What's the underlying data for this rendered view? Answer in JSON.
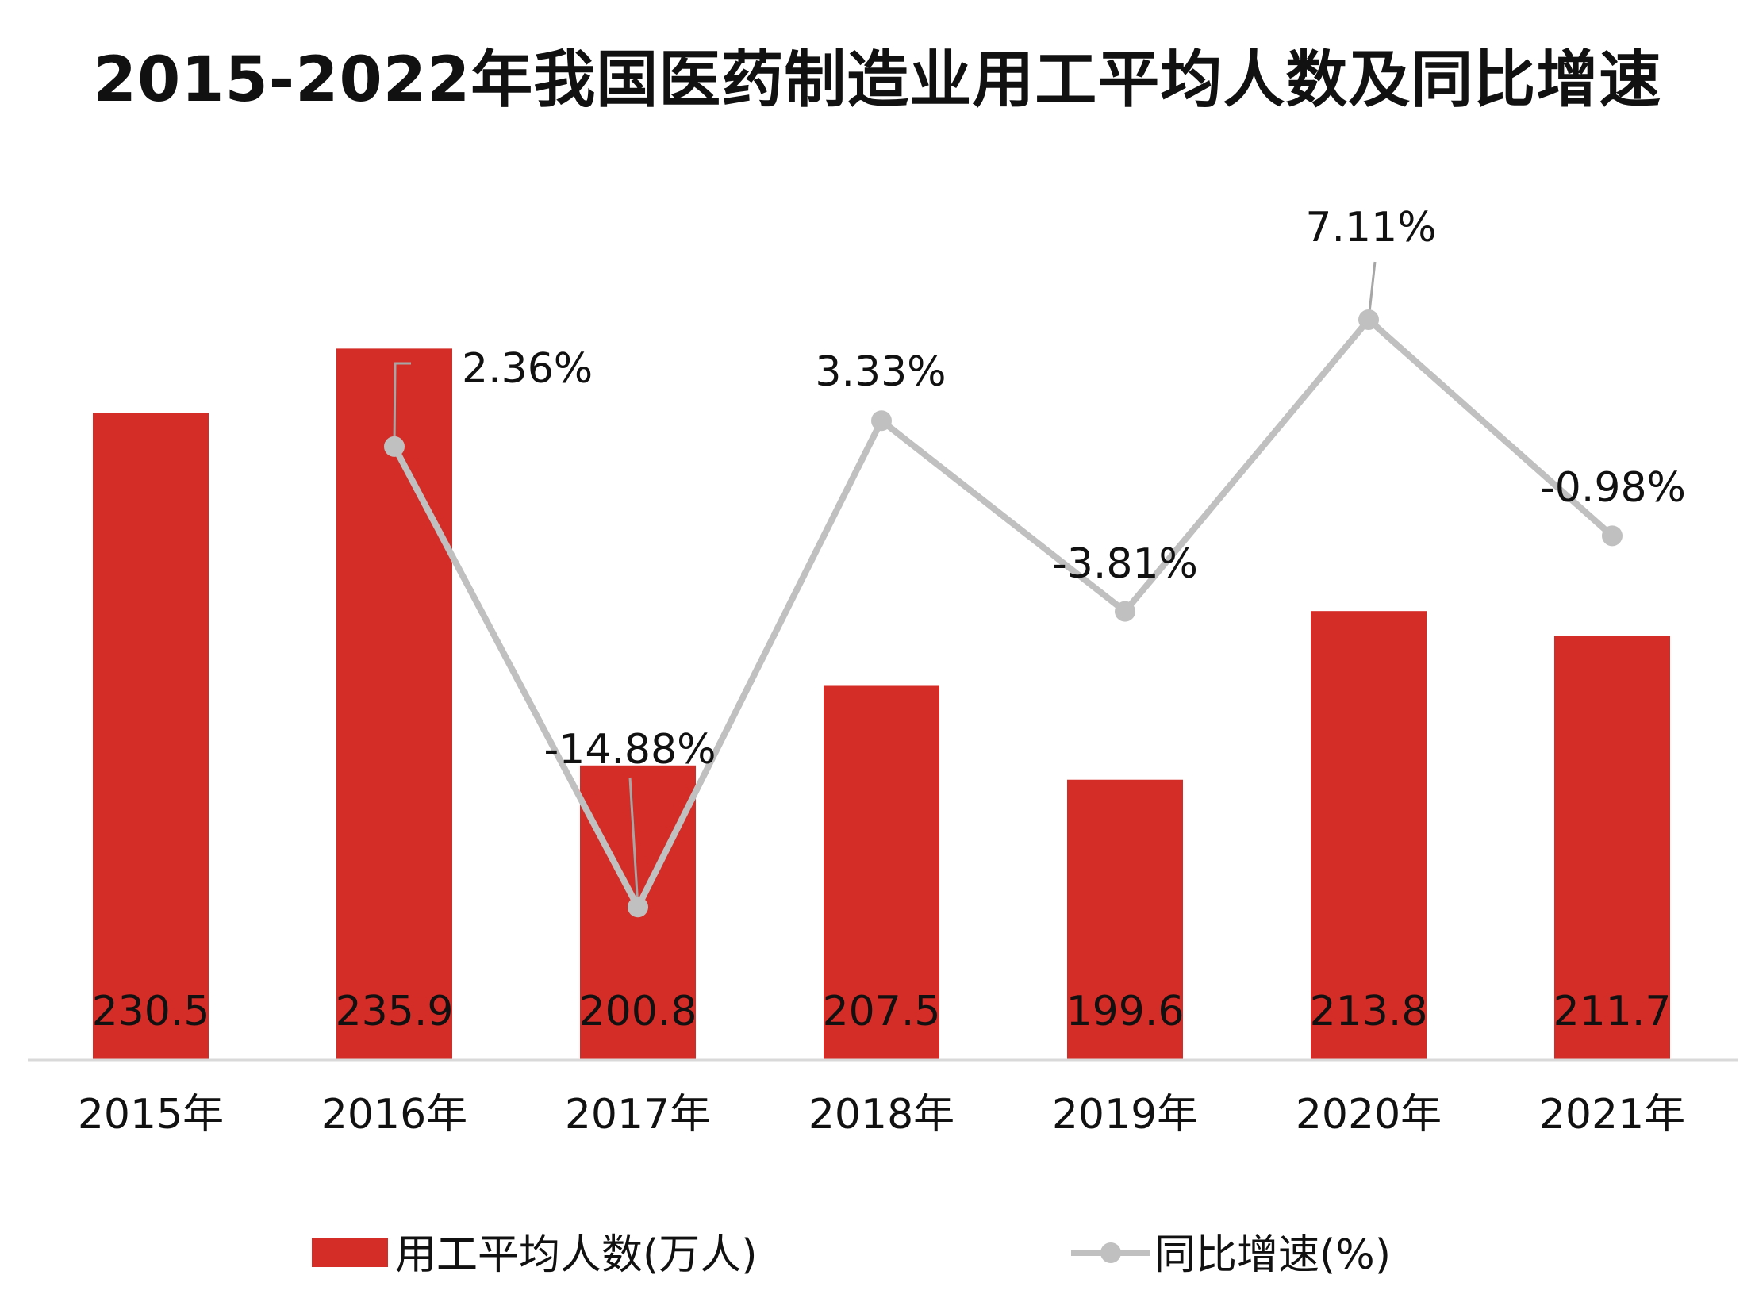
{
  "title": "2015-2022年我国医药制造业用工平均人数及同比增速",
  "colors": {
    "bar": "#d42d27",
    "line": "#c0c0c0",
    "text": "#111111"
  },
  "chart_data": {
    "type": "bar",
    "title": "2015-2022年我国医药制造业用工平均人数及同比增速",
    "categories": [
      "2015年",
      "2016年",
      "2017年",
      "2018年",
      "2019年",
      "2020年",
      "2021年"
    ],
    "series": [
      {
        "name": "用工平均人数(万人)",
        "type": "bar",
        "axis": "left",
        "values": [
          230.5,
          235.9,
          200.8,
          207.5,
          199.6,
          213.8,
          211.7
        ],
        "labels": [
          "230.5",
          "235.9",
          "200.8",
          "207.5",
          "199.6",
          "213.8",
          "211.7"
        ]
      },
      {
        "name": "同比增速(%)",
        "type": "line",
        "axis": "right",
        "values": [
          null,
          2.36,
          -14.88,
          3.33,
          -3.81,
          7.11,
          -0.98
        ],
        "labels": [
          "",
          "2.36%",
          "-14.88%",
          "3.33%",
          "-3.81%",
          "7.11%",
          "-0.98%"
        ]
      }
    ],
    "ylim_left": [
      176,
      240
    ],
    "ylim_right": [
      -19,
      11
    ],
    "grid": false,
    "legend": "bottom"
  }
}
